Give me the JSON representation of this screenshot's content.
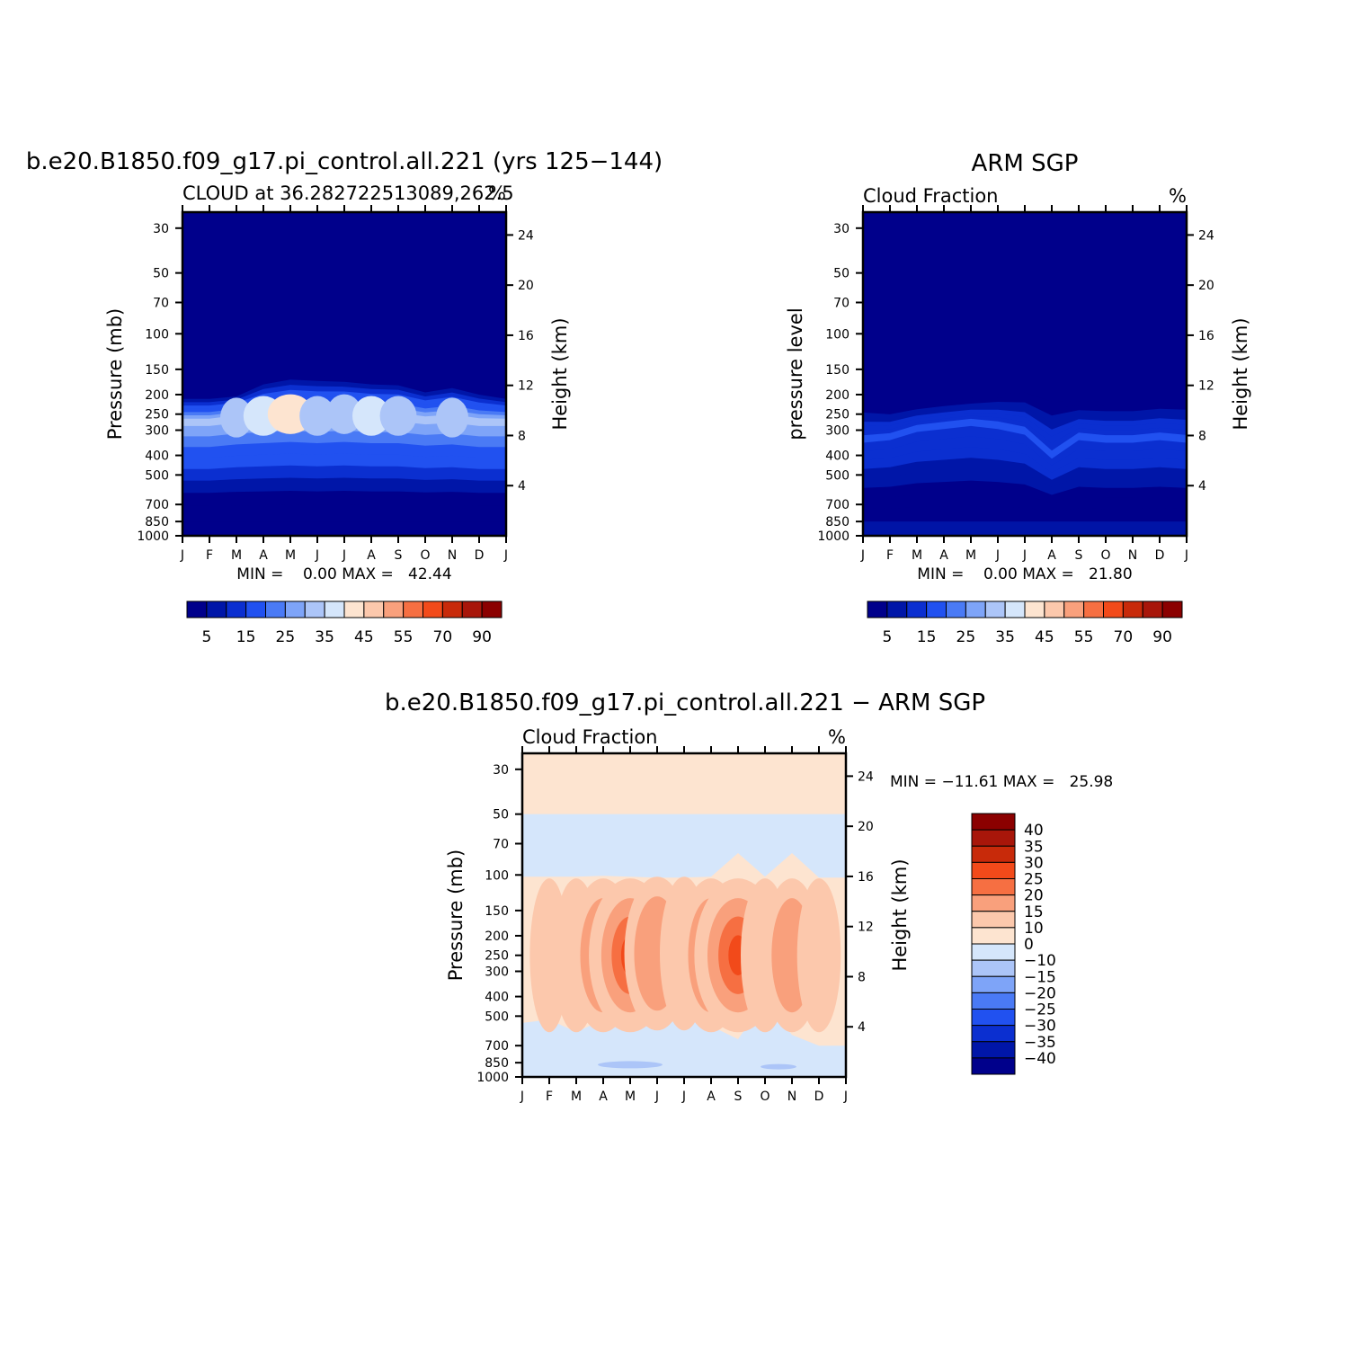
{
  "colors": {
    "cloud_scale": [
      "#00008b",
      "#0016a8",
      "#0b2fd0",
      "#2151f0",
      "#4a7af5",
      "#7ea4f8",
      "#acc5f8",
      "#d5e6fb",
      "#fde4d0",
      "#fcc8ac",
      "#f9a07c",
      "#f66f42",
      "#f24a1a",
      "#c82a0a",
      "#a8160a",
      "#8b0000"
    ],
    "diff_scale": [
      "#00008b",
      "#0016a8",
      "#0b2fd0",
      "#2151f0",
      "#4a7af5",
      "#7ea4f8",
      "#acc5f8",
      "#d5e6fb",
      "#fde4d0",
      "#fcc8ac",
      "#f9a07c",
      "#f66f42",
      "#f24a1a",
      "#c82a0a",
      "#a8160a",
      "#8b0000"
    ]
  },
  "panels": {
    "model": {
      "main_title": "b.e20.B1850.f09_g17.pi_control.all.221 (yrs 125−144)",
      "left_string": "CLOUD at 36.282722513089,262.5",
      "right_string": "%",
      "ylabel": "Pressure (mb)",
      "ylabel_right": "Height (km)",
      "minmax": "MIN =    0.00 MAX =   42.44"
    },
    "obs": {
      "main_title": "ARM SGP",
      "left_string": "Cloud Fraction",
      "right_string": "%",
      "ylabel": "pressure level",
      "ylabel_right": "Height (km)",
      "minmax": "MIN =    0.00 MAX =   21.80"
    },
    "diff": {
      "main_title": "b.e20.B1850.f09_g17.pi_control.all.221 − ARM SGP",
      "left_string": "Cloud Fraction",
      "right_string": "%",
      "ylabel": "Pressure (mb)",
      "ylabel_right": "Height (km)",
      "minmax": "MIN = −11.61 MAX =   25.98"
    }
  },
  "chart_data": [
    {
      "type": "heatmap",
      "title": "b.e20.B1850.f09_g17.pi_control.all.221 (yrs 125−144)",
      "subtitle": "CLOUD at 36.282722513089,262.5",
      "units": "%",
      "xlabel": "",
      "ylabel": "Pressure (mb)",
      "ylabel_right": "Height (km)",
      "x_ticks": [
        "J",
        "F",
        "M",
        "A",
        "M",
        "J",
        "J",
        "A",
        "S",
        "O",
        "N",
        "D",
        "J"
      ],
      "y_ticks": [
        30,
        50,
        70,
        100,
        150,
        200,
        250,
        300,
        400,
        500,
        700,
        850,
        1000
      ],
      "y_ticks_right": [
        24,
        20,
        16,
        12,
        8,
        4
      ],
      "ylim": [
        1000,
        25
      ],
      "y_scale": "log",
      "min": 0.0,
      "max": 42.44,
      "colorbar_labels": [
        "5",
        "15",
        "25",
        "35",
        "45",
        "55",
        "70",
        "90"
      ],
      "levels": [
        5,
        10,
        15,
        20,
        25,
        30,
        35,
        40,
        45,
        50,
        55,
        60,
        70,
        80,
        90
      ],
      "months": [
        1,
        2,
        3,
        4,
        5,
        6,
        7,
        8,
        9,
        10,
        11,
        12,
        13
      ],
      "cloud_top_mb": [
        195,
        195,
        190,
        160,
        150,
        152,
        155,
        160,
        162,
        178,
        168,
        183,
        195
      ],
      "peak_cloud_pct": [
        26,
        26,
        30,
        37,
        42,
        33,
        33,
        35,
        34,
        28,
        30,
        26,
        26
      ],
      "peak_level_mb": [
        270,
        270,
        260,
        255,
        250,
        255,
        250,
        255,
        255,
        265,
        260,
        270,
        270
      ],
      "low_cloud_pct": [
        4,
        4,
        3,
        2,
        1,
        1,
        1,
        1,
        1,
        2,
        3,
        4,
        4
      ]
    },
    {
      "type": "heatmap",
      "title": "ARM SGP",
      "subtitle": "Cloud Fraction",
      "units": "%",
      "xlabel": "",
      "ylabel": "pressure level",
      "ylabel_right": "Height (km)",
      "x_ticks": [
        "J",
        "F",
        "M",
        "A",
        "M",
        "J",
        "J",
        "A",
        "S",
        "O",
        "N",
        "D",
        "J"
      ],
      "y_ticks": [
        30,
        50,
        70,
        100,
        150,
        200,
        250,
        300,
        400,
        500,
        700,
        850,
        1000
      ],
      "y_ticks_right": [
        24,
        20,
        16,
        12,
        8,
        4
      ],
      "ylim": [
        1000,
        25
      ],
      "y_scale": "log",
      "min": 0.0,
      "max": 21.8,
      "colorbar_labels": [
        "5",
        "15",
        "25",
        "35",
        "45",
        "55",
        "70",
        "90"
      ],
      "levels": [
        5,
        10,
        15,
        20,
        25,
        30,
        35,
        40,
        45,
        50,
        55,
        60,
        70,
        80,
        90
      ],
      "months": [
        1,
        2,
        3,
        4,
        5,
        6,
        7,
        8,
        9,
        10,
        11,
        12,
        13
      ],
      "cloud_top_mb": [
        210,
        220,
        212,
        205,
        200,
        190,
        185,
        200,
        205,
        205,
        205,
        200,
        200
      ],
      "peak_cloud_pct": [
        22,
        18,
        17,
        18,
        18,
        16,
        12,
        10,
        14,
        16,
        14,
        18,
        22
      ],
      "peak_level_mb": [
        330,
        320,
        290,
        280,
        270,
        280,
        300,
        400,
        320,
        330,
        330,
        320,
        330
      ],
      "low_cloud_pct": [
        9,
        9,
        11,
        11,
        9,
        9,
        6,
        7,
        8,
        9,
        11,
        9,
        9
      ]
    },
    {
      "type": "heatmap",
      "title": "b.e20.B1850.f09_g17.pi_control.all.221 − ARM SGP",
      "subtitle": "Cloud Fraction",
      "units": "%",
      "xlabel": "",
      "ylabel": "Pressure (mb)",
      "ylabel_right": "Height (km)",
      "x_ticks": [
        "J",
        "F",
        "M",
        "A",
        "M",
        "J",
        "J",
        "A",
        "S",
        "O",
        "N",
        "D",
        "J"
      ],
      "y_ticks": [
        30,
        50,
        70,
        100,
        150,
        200,
        250,
        300,
        400,
        500,
        700,
        850,
        1000
      ],
      "y_ticks_right": [
        24,
        20,
        16,
        12,
        8,
        4
      ],
      "ylim": [
        1000,
        25
      ],
      "y_scale": "log",
      "min": -11.61,
      "max": 25.98,
      "colorbar_labels": [
        "40",
        "35",
        "30",
        "25",
        "20",
        "15",
        "10",
        "0",
        "−10",
        "−15",
        "−20",
        "−25",
        "−30",
        "−35",
        "−40"
      ],
      "levels": [
        -40,
        -35,
        -30,
        -25,
        -20,
        -15,
        -10,
        0,
        10,
        15,
        20,
        25,
        30,
        35,
        40
      ],
      "months": [
        1,
        2,
        3,
        4,
        5,
        6,
        7,
        8,
        9,
        10,
        11,
        12,
        13
      ],
      "upper_band_top_mb": 50,
      "upper_band_bottom_mb": [
        102,
        102,
        102,
        101,
        102,
        103,
        103,
        102,
        78,
        102,
        78,
        103,
        103
      ],
      "peak_diff_pct": [
        4,
        6,
        9,
        17,
        24,
        17,
        10,
        17,
        26,
        10,
        14,
        8,
        4
      ],
      "peak_level_mb": [
        250,
        250,
        250,
        250,
        250,
        245,
        245,
        250,
        250,
        250,
        250,
        250,
        250
      ],
      "low_negative_top_mb": [
        540,
        520,
        600,
        520,
        420,
        350,
        340,
        560,
        650,
        420,
        620,
        700,
        700
      ]
    }
  ]
}
